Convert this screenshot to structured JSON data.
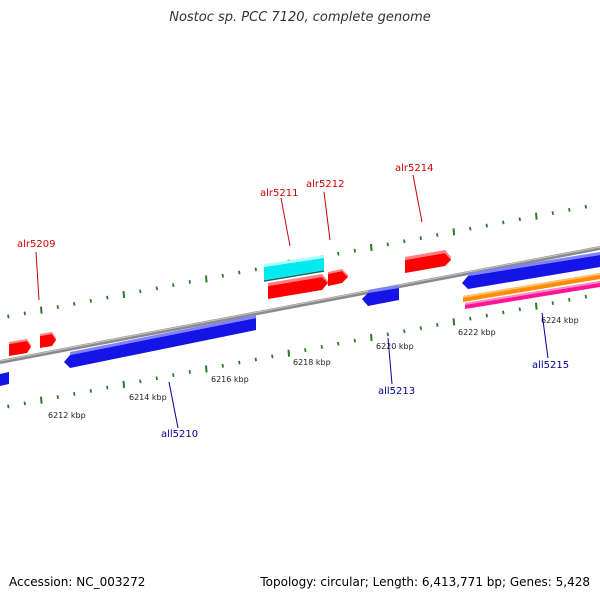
{
  "title": "Nostoc sp. PCC 7120, complete genome",
  "footer": {
    "accession": "Accession: NC_003272",
    "summary": "Topology: circular; Length: 6,413,771 bp; Genes: 5,428"
  },
  "colors": {
    "forward_label": "#cc0000",
    "reverse_label": "#000099",
    "tick": "#2a7a2a",
    "backbone": "#8a8a8a",
    "gene_red": "#ff0000",
    "gene_blue": "#1414e6",
    "gene_cyan": "#00e8f0",
    "gene_orange": "#ff8c00",
    "gene_magenta": "#ff1493"
  },
  "scale": {
    "labels": [
      "6212 kbp",
      "6214 kbp",
      "6216 kbp",
      "6218 kbp",
      "6220 kbp",
      "6222 kbp",
      "6224 kbp"
    ]
  },
  "genes": [
    {
      "label": "alr5209",
      "strand": "+"
    },
    {
      "label": "all5210",
      "strand": "-"
    },
    {
      "label": "alr5211",
      "strand": "+"
    },
    {
      "label": "alr5212",
      "strand": "+"
    },
    {
      "label": "all5213",
      "strand": "-"
    },
    {
      "label": "alr5214",
      "strand": "+"
    },
    {
      "label": "all5215",
      "strand": "-"
    }
  ]
}
